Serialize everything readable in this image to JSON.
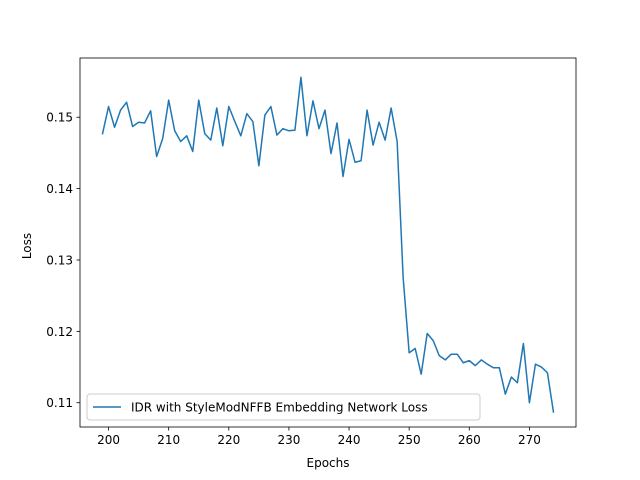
{
  "chart_data": {
    "type": "line",
    "title": "",
    "xlabel": "Epochs",
    "ylabel": "Loss",
    "xlim": [
      195.25,
      277.75
    ],
    "ylim": [
      0.1066,
      0.1583
    ],
    "xticks": [
      200,
      210,
      220,
      230,
      240,
      250,
      260,
      270
    ],
    "yticks": [
      0.11,
      0.12,
      0.13,
      0.14,
      0.15
    ],
    "ytick_labels": [
      "0.11",
      "0.12",
      "0.13",
      "0.14",
      "0.15"
    ],
    "grid": false,
    "legend_position": "lower-left",
    "series": [
      {
        "name": "IDR with StyleModNFFB Embedding Network Loss",
        "color": "#1f77b4",
        "x": [
          199,
          200,
          201,
          202,
          203,
          204,
          205,
          206,
          207,
          208,
          209,
          210,
          211,
          212,
          213,
          214,
          215,
          216,
          217,
          218,
          219,
          220,
          221,
          222,
          223,
          224,
          225,
          226,
          227,
          228,
          229,
          230,
          231,
          232,
          233,
          234,
          235,
          236,
          237,
          238,
          239,
          240,
          241,
          242,
          243,
          244,
          245,
          246,
          247,
          248,
          249,
          250,
          251,
          252,
          253,
          254,
          255,
          256,
          257,
          258,
          259,
          260,
          261,
          262,
          263,
          264,
          265,
          266,
          267,
          268,
          269,
          270,
          271,
          272,
          273,
          274
        ],
        "y": [
          0.1477,
          0.1515,
          0.1486,
          0.151,
          0.1521,
          0.1487,
          0.1493,
          0.1492,
          0.1509,
          0.1445,
          0.147,
          0.1524,
          0.1481,
          0.1466,
          0.1474,
          0.1452,
          0.1524,
          0.1477,
          0.1468,
          0.1513,
          0.146,
          0.1515,
          0.1494,
          0.1474,
          0.1505,
          0.1494,
          0.1432,
          0.1503,
          0.1515,
          0.1475,
          0.1484,
          0.1481,
          0.1482,
          0.1556,
          0.1474,
          0.1523,
          0.1484,
          0.151,
          0.1449,
          0.1492,
          0.1417,
          0.1469,
          0.1437,
          0.1439,
          0.151,
          0.1461,
          0.1493,
          0.1468,
          0.1513,
          0.1466,
          0.1275,
          0.117,
          0.1176,
          0.114,
          0.1197,
          0.1187,
          0.1166,
          0.116,
          0.1168,
          0.1168,
          0.1156,
          0.1159,
          0.1152,
          0.116,
          0.1154,
          0.1149,
          0.1149,
          0.1112,
          0.1136,
          0.1128,
          0.1183,
          0.11,
          0.1154,
          0.115,
          0.1142,
          0.1087
        ]
      }
    ]
  }
}
